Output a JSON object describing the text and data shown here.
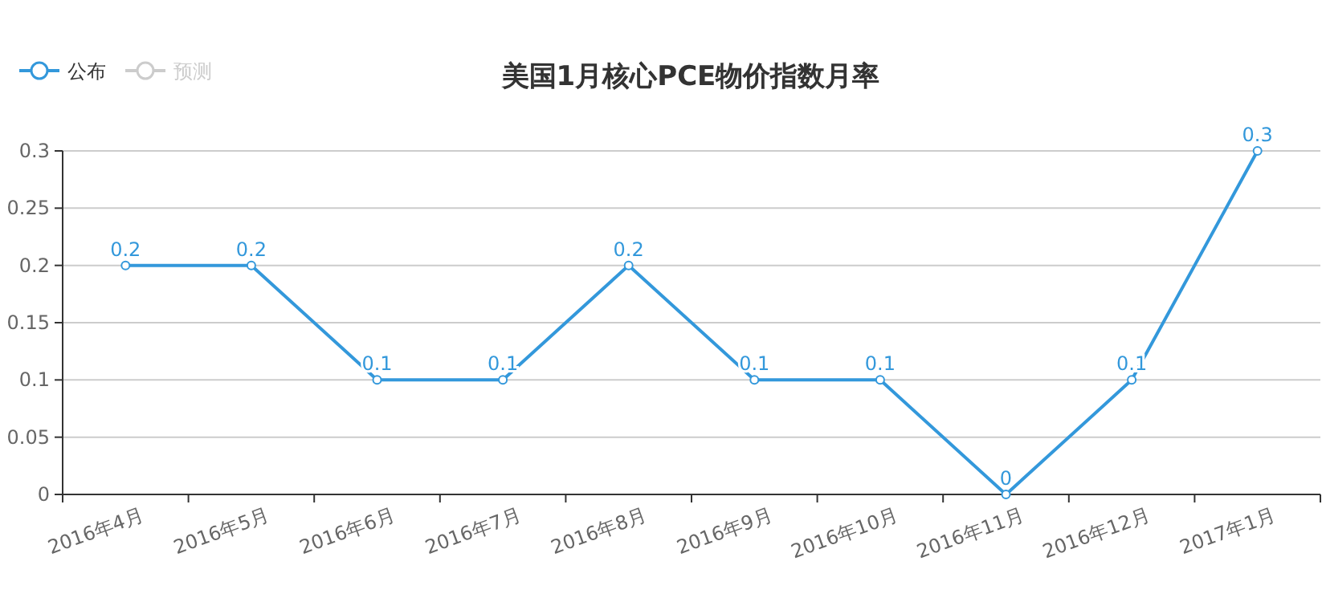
{
  "chart_data": {
    "type": "line",
    "title": "美国1月核心PCE物价指数月率",
    "categories": [
      "2016年4月",
      "2016年5月",
      "2016年6月",
      "2016年7月",
      "2016年8月",
      "2016年9月",
      "2016年10月",
      "2016年11月",
      "2016年12月",
      "2017年1月"
    ],
    "series": [
      {
        "name": "公布",
        "color": "#3398db",
        "values": [
          0.2,
          0.2,
          0.1,
          0.1,
          0.2,
          0.1,
          0.1,
          0,
          0.1,
          0.3
        ]
      },
      {
        "name": "预测",
        "color": "#cccccc",
        "values": [
          null,
          null,
          null,
          null,
          null,
          null,
          null,
          null,
          null,
          null
        ]
      }
    ],
    "ylim": [
      0,
      0.3
    ],
    "yticks": [
      0,
      0.05,
      0.1,
      0.15,
      0.2,
      0.25,
      0.3
    ],
    "grid": "y",
    "legend": "top left",
    "marker": "circle",
    "data_labels": true
  }
}
